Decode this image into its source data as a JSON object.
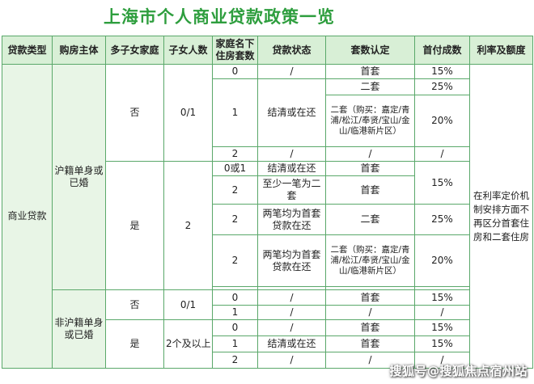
{
  "title": "上海市个人商业贷款政策一览",
  "headers": [
    "贷款类型",
    "购房主体",
    "多子女家庭",
    "子女人数",
    "家庭名下住房套数",
    "贷款状态",
    "套数认定",
    "首付成数",
    "利率及额度"
  ],
  "loan_type": "商业贷款",
  "buyer_local": "沪籍单身或已婚",
  "buyer_nonlocal": "非沪籍单身或已婚",
  "rate_note": "在利率定价机制安排方面不再区分首套住房和二套住房",
  "local_no": {
    "multi": "否",
    "children": "0/1",
    "r1": {
      "count": "0",
      "status": "/",
      "type": "首套",
      "down": "15%"
    },
    "r2": {
      "count": "1",
      "status": "结清或在还",
      "type": "二套",
      "down": "25%"
    },
    "r3": {
      "type": "二套（购买：嘉定/青浦/松江/奉贤/宝山/金山/临港新片区）",
      "down": "20%"
    },
    "r4": {
      "count": "2",
      "status": "/",
      "type": "/",
      "down": "/"
    }
  },
  "local_yes": {
    "multi": "是",
    "children": "2",
    "r1": {
      "count": "0或1",
      "status": "结清或在还",
      "type": "首套"
    },
    "r2": {
      "count": "2",
      "status": "至少一笔为二套",
      "type": "首套"
    },
    "down12": "15%",
    "r3": {
      "count": "2",
      "status": "两笔均为首套贷款在还",
      "type": "二套",
      "down": "25%"
    },
    "r4": {
      "count": "2",
      "status": "两笔均为首套贷款在还",
      "type": "二套（购买：嘉定/青浦/松江/奉贤/宝山/金山/临港新片区）",
      "down": "20%"
    }
  },
  "nonlocal_no": {
    "multi": "否",
    "children": "0/1",
    "r1": {
      "count": "0",
      "status": "/",
      "type": "首套",
      "down": "15%"
    },
    "r2": {
      "count": "1",
      "status": "/",
      "type": "/",
      "down": "/"
    }
  },
  "nonlocal_yes": {
    "multi": "是",
    "children": "2个及以上",
    "r1": {
      "count": "0",
      "status": "/",
      "type": "首套",
      "down": "15%"
    },
    "r2": {
      "count": "1",
      "status": "结清或在还",
      "type": "首套",
      "down": "15%"
    },
    "r3": {
      "count": "2",
      "status": "/",
      "type": "/",
      "down": "/"
    }
  },
  "watermark": "搜狐号@搜狐焦点宿州站"
}
